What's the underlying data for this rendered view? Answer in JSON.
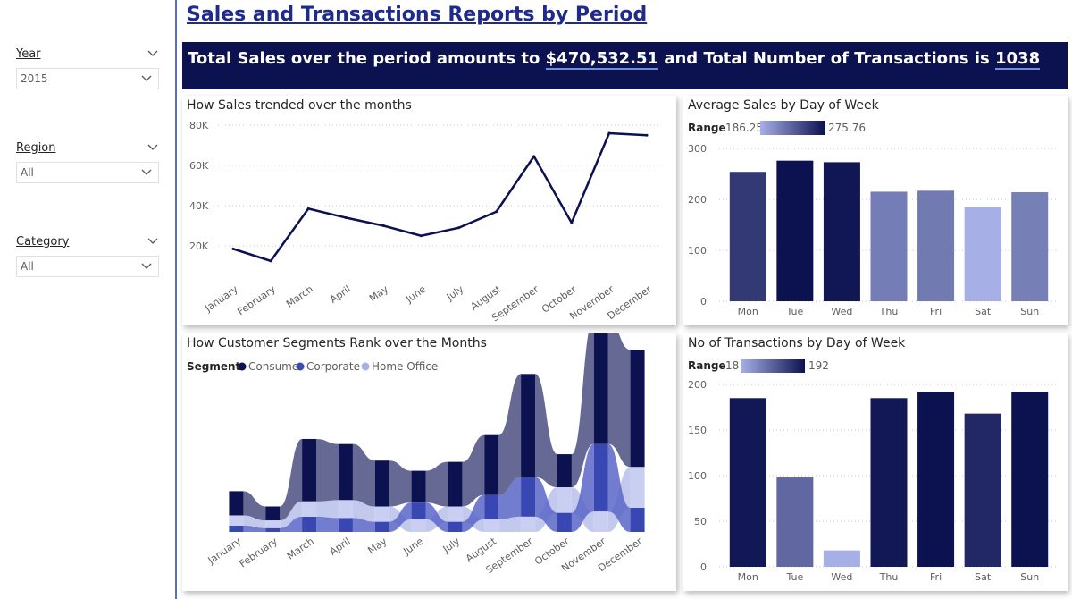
{
  "page": {
    "title": "Sales and Transactions Reports by Period",
    "banner": {
      "prefix": "Total Sales over the period amounts to",
      "total_sales": "$470,532.51",
      "middle": "and Total Number of Transactions is",
      "total_transactions": "1038"
    }
  },
  "filters": [
    {
      "label": "Year",
      "value": "2015"
    },
    {
      "label": "Region",
      "value": "All"
    },
    {
      "label": "Category",
      "value": "All"
    }
  ],
  "colors": {
    "navy": "#0c1250",
    "dark": "#111a5c",
    "mid": "#3c4bb0",
    "light": "#a7b0e6",
    "sidebar_rule": "#5b6fb5"
  },
  "chart_data": [
    {
      "id": "sales-trend",
      "type": "line",
      "title": "How Sales trended over the months",
      "categories": [
        "January",
        "February",
        "March",
        "April",
        "May",
        "June",
        "July",
        "August",
        "September",
        "October",
        "November",
        "December"
      ],
      "values": [
        18500,
        12500,
        38500,
        34000,
        30000,
        25000,
        29000,
        37000,
        64500,
        31500,
        76000,
        75000
      ],
      "yticks": [
        20000,
        40000,
        60000,
        80000
      ],
      "ytick_labels": [
        "20K",
        "40K",
        "60K",
        "80K"
      ],
      "ylim": [
        8000,
        80000
      ],
      "grid": true
    },
    {
      "id": "avg-sales-dow",
      "type": "bar",
      "title": "Average Sales by Day of Week",
      "legend_label": "Range",
      "range_min": "186.25",
      "range_max": "275.76",
      "categories": [
        "Mon",
        "Tue",
        "Wed",
        "Thu",
        "Fri",
        "Sat",
        "Sun"
      ],
      "values": [
        254,
        276,
        273,
        215,
        217,
        186,
        214
      ],
      "yticks": [
        0,
        100,
        200,
        300
      ],
      "ytick_labels": [
        "0",
        "100",
        "200",
        "300"
      ],
      "ylim": [
        0,
        300
      ],
      "color_range": [
        "#a7b0e6",
        "#0c1250"
      ],
      "grid": true
    },
    {
      "id": "segments-rank",
      "type": "area",
      "title": "How Customer Segments Rank over the Months",
      "legend_title": "Segment",
      "legend": [
        "Consumer",
        "Corporate",
        "Home Office"
      ],
      "categories": [
        "January",
        "February",
        "March",
        "April",
        "May",
        "June",
        "July",
        "August",
        "September",
        "October",
        "November",
        "December"
      ],
      "series": [
        {
          "name": "Consumer",
          "values": [
            9.5,
            5.5,
            24.5,
            22,
            18,
            12.5,
            17.5,
            23.5,
            40.5,
            13,
            49,
            46
          ]
        },
        {
          "name": "Corporate",
          "values": [
            2.5,
            1.5,
            6,
            5.5,
            4,
            6.5,
            4,
            9.5,
            15.5,
            7.5,
            26.5,
            9.5
          ]
        },
        {
          "name": "Home Office",
          "values": [
            4,
            3,
            6,
            7,
            6,
            5,
            6,
            5,
            6,
            10,
            8,
            16
          ]
        }
      ],
      "grid": false
    },
    {
      "id": "txn-dow",
      "type": "bar",
      "title": "No of Transactions by Day of Week",
      "legend_label": "Range",
      "range_min": "18",
      "range_max": "192",
      "categories": [
        "Mon",
        "Tue",
        "Wed",
        "Thu",
        "Fri",
        "Sat",
        "Sun"
      ],
      "values": [
        185,
        98,
        18,
        185,
        192,
        168,
        192
      ],
      "yticks": [
        0,
        50,
        100,
        150,
        200
      ],
      "ytick_labels": [
        "0",
        "50",
        "100",
        "150",
        "200"
      ],
      "ylim": [
        0,
        200
      ],
      "color_range": [
        "#a7b0e6",
        "#0c1250"
      ],
      "grid": true
    }
  ]
}
